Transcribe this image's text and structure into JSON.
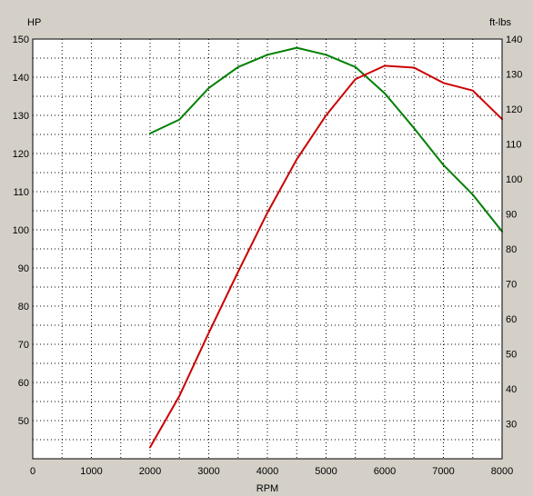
{
  "chart_data": {
    "type": "line",
    "ylabel_left": "HP",
    "ylabel_right": "ft-lbs",
    "xlabel": "RPM",
    "xlim": [
      0,
      8000
    ],
    "ylim_left": [
      40,
      150
    ],
    "ylim_right": [
      20,
      140
    ],
    "x_ticks": [
      "0",
      "1000",
      "2000",
      "3000",
      "4000",
      "5000",
      "6000",
      "7000",
      "8000"
    ],
    "y_left_ticks": [
      "50",
      "60",
      "70",
      "80",
      "90",
      "100",
      "110",
      "120",
      "130",
      "140",
      "150"
    ],
    "y_right_ticks": [
      "30",
      "40",
      "50",
      "60",
      "70",
      "80",
      "90",
      "100",
      "110",
      "120",
      "130",
      "140"
    ],
    "grid": true,
    "series": [
      {
        "axis": "right",
        "color": "#008000",
        "x": [
          2000,
          2500,
          3000,
          3500,
          4000,
          4500,
          5000,
          5500,
          6000,
          6500,
          7000,
          7500,
          8000
        ],
        "values": [
          113,
          117,
          126,
          132,
          135.5,
          137.5,
          135.5,
          132,
          124.5,
          114.5,
          104,
          95.5,
          85
        ]
      },
      {
        "axis": "left",
        "color": "#cc0000",
        "x": [
          2000,
          2500,
          3000,
          3500,
          4000,
          4500,
          5000,
          5500,
          6000,
          6500,
          7000,
          7500,
          8000
        ],
        "values": [
          43,
          56.5,
          73,
          89,
          104.5,
          118.5,
          130,
          139.5,
          143,
          142.5,
          138.5,
          136.5,
          129
        ]
      }
    ]
  }
}
